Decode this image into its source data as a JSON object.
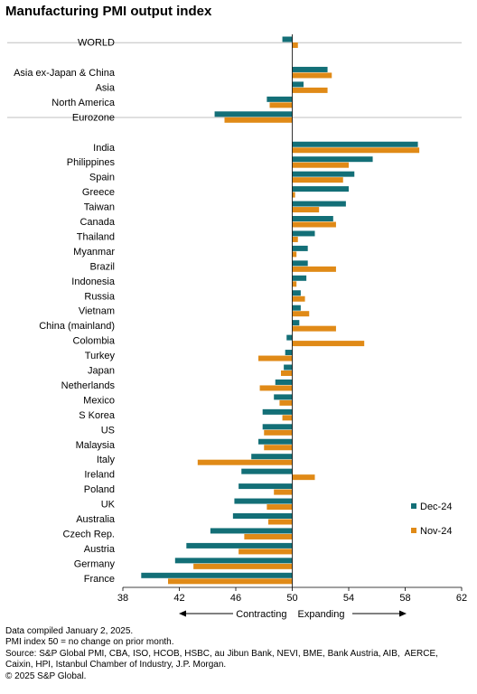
{
  "chart_data": {
    "type": "bar",
    "orientation": "horizontal",
    "title": "Manufacturing PMI output index",
    "xlim": [
      38,
      62
    ],
    "xticks": [
      38,
      42,
      46,
      50,
      54,
      58,
      62
    ],
    "baseline": 50,
    "direction_labels": {
      "left": "Contracting",
      "right": "Expanding"
    },
    "legend": {
      "placement": "right",
      "entries": [
        "Dec-24",
        "Nov-24"
      ]
    },
    "colors": {
      "Dec-24": "#136f77",
      "Nov-24": "#e08a17",
      "separator": "#bfbfbf",
      "axis": "#000000"
    },
    "groups": [
      {
        "categories": [
          "WORLD"
        ]
      },
      {
        "categories": [
          "Asia ex-Japan & China",
          "Asia",
          "North America",
          "Eurozone"
        ]
      },
      {
        "categories": [
          "India",
          "Philippines",
          "Spain",
          "Greece",
          "Taiwan",
          "Canada",
          "Thailand",
          "Myanmar",
          "Brazil",
          "Indonesia",
          "Russia",
          "Vietnam",
          "China (mainland)",
          "Colombia",
          "Turkey",
          "Japan",
          "Netherlands",
          "Mexico",
          "S Korea",
          "US",
          "Malaysia",
          "Italy",
          "Ireland",
          "Poland",
          "UK",
          "Australia",
          "Czech Rep.",
          "Austria",
          "Germany",
          "France"
        ]
      }
    ],
    "series": [
      {
        "name": "Dec-24",
        "values": [
          49.3,
          52.5,
          50.8,
          48.2,
          44.5,
          58.9,
          55.7,
          54.4,
          54.0,
          53.8,
          52.9,
          51.6,
          51.1,
          51.1,
          51.0,
          50.6,
          50.6,
          50.5,
          49.6,
          49.5,
          49.4,
          48.8,
          48.7,
          47.9,
          47.9,
          47.6,
          47.1,
          46.4,
          46.2,
          45.9,
          45.8,
          44.2,
          42.5,
          41.7,
          39.3
        ]
      },
      {
        "name": "Nov-24",
        "values": [
          50.4,
          52.8,
          52.5,
          48.4,
          45.2,
          59.0,
          54.0,
          53.6,
          50.2,
          51.9,
          53.1,
          50.4,
          50.3,
          53.1,
          50.3,
          50.9,
          51.2,
          53.1,
          55.1,
          47.6,
          49.2,
          47.7,
          49.1,
          49.3,
          48.0,
          48.0,
          43.3,
          51.6,
          48.7,
          48.2,
          48.3,
          46.6,
          46.2,
          43.0,
          41.2
        ]
      }
    ]
  },
  "footnotes": [
    "Data compiled January 2, 2025.",
    "PMI index 50 = no change on prior month.",
    "Source: S&P Global PMI, CBA, ISO, HCOB, HSBC, au Jibun Bank, NEVI, BME, Bank Austria, AIB,  AERCE, Caixin, HPI, Istanbul Chamber of Industry, J.P. Morgan.",
    "© 2025 S&P Global."
  ]
}
